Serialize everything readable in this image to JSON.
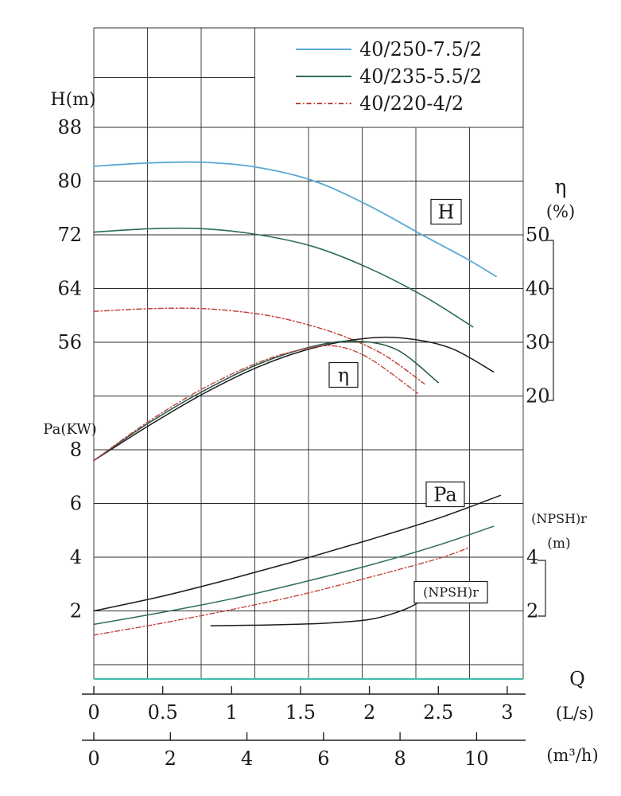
{
  "chart_data": {
    "type": "line",
    "legend": [
      {
        "label": "40/250-7.5/2",
        "color": "#5aa8d6",
        "dash": []
      },
      {
        "label": "40/235-5.5/2",
        "color": "#2c6e58",
        "dash": []
      },
      {
        "label": "40/220-4/2",
        "color": "#c2443b",
        "dash": [
          6,
          3,
          1.5,
          3
        ]
      }
    ],
    "axes": {
      "H": {
        "label": "H(m)",
        "ticks": [
          88,
          80,
          72,
          64,
          56
        ]
      },
      "Pa": {
        "label": "Pa(KW)",
        "ticks": [
          8,
          6,
          4,
          2
        ]
      },
      "eta": {
        "label_symbol": "η",
        "label_unit": "(%)",
        "ticks": [
          50,
          40,
          30,
          20
        ]
      },
      "npsh": {
        "label_symbol": "(NPSH)r",
        "label_unit": "(m)",
        "ticks": [
          4,
          2
        ]
      },
      "q_ls": {
        "axis_letter": "Q",
        "unit_label": "(L/s)",
        "ticks": [
          "0",
          "0.5",
          "1",
          "1.5",
          "2",
          "2.5",
          "3"
        ],
        "tick_values": [
          0,
          0.5,
          1,
          1.5,
          2,
          2.5,
          3
        ]
      },
      "q_m3h": {
        "unit_label": "(m³/h)",
        "ticks": [
          "0",
          "2",
          "4",
          "6",
          "8",
          "10"
        ],
        "tick_values": [
          0,
          2,
          4,
          6,
          8,
          10
        ]
      }
    },
    "curve_boxes": [
      {
        "text": "H"
      },
      {
        "text": "η"
      },
      {
        "text": "Pa"
      },
      {
        "text": "(NPSH)r"
      }
    ],
    "series": [
      {
        "name": "H 40/250-7.5/2",
        "axis": "H",
        "color": "#5aa8d6",
        "width": 1.8,
        "dash": [],
        "points": [
          [
            0,
            82.2
          ],
          [
            0.4,
            82.7
          ],
          [
            0.8,
            82.8
          ],
          [
            1.2,
            82.0
          ],
          [
            1.6,
            80.0
          ],
          [
            2.0,
            76.3
          ],
          [
            2.4,
            71.8
          ],
          [
            2.7,
            68.5
          ],
          [
            2.92,
            65.8
          ]
        ]
      },
      {
        "name": "H 40/235-5.5/2",
        "axis": "H",
        "color": "#2c6e58",
        "width": 1.6,
        "dash": [],
        "points": [
          [
            0,
            72.4
          ],
          [
            0.4,
            72.9
          ],
          [
            0.8,
            72.9
          ],
          [
            1.2,
            72.0
          ],
          [
            1.6,
            70.2
          ],
          [
            2.0,
            67.0
          ],
          [
            2.4,
            62.8
          ],
          [
            2.75,
            58.3
          ]
        ]
      },
      {
        "name": "H 40/220-4/2",
        "axis": "H",
        "color": "#c2443b",
        "width": 1.5,
        "dash": [
          6,
          3,
          1.5,
          3
        ],
        "points": [
          [
            0,
            60.6
          ],
          [
            0.4,
            61.0
          ],
          [
            0.8,
            61.0
          ],
          [
            1.2,
            60.2
          ],
          [
            1.5,
            58.9
          ],
          [
            1.8,
            57.0
          ],
          [
            2.1,
            54.2
          ],
          [
            2.4,
            49.8
          ]
        ]
      },
      {
        "name": "η 40/250-7.5/2",
        "axis": "eta",
        "color": "#1c1c1c",
        "width": 1.5,
        "dash": [],
        "points": [
          [
            0,
            8
          ],
          [
            0.4,
            14.5
          ],
          [
            0.8,
            20.5
          ],
          [
            1.2,
            25.5
          ],
          [
            1.6,
            29.0
          ],
          [
            2.0,
            30.8
          ],
          [
            2.3,
            30.6
          ],
          [
            2.6,
            28.8
          ],
          [
            2.9,
            24.5
          ]
        ]
      },
      {
        "name": "η 40/235-5.5/2",
        "axis": "eta",
        "color": "#24584a",
        "width": 1.5,
        "dash": [],
        "points": [
          [
            0,
            8
          ],
          [
            0.4,
            15.0
          ],
          [
            0.8,
            21.0
          ],
          [
            1.2,
            26.0
          ],
          [
            1.6,
            29.3
          ],
          [
            1.9,
            30.2
          ],
          [
            2.2,
            28.6
          ],
          [
            2.5,
            22.5
          ]
        ]
      },
      {
        "name": "η 40/220-4/2",
        "axis": "eta",
        "color": "#c2443b",
        "width": 1.4,
        "dash": [
          6,
          3,
          1.5,
          3
        ],
        "points": [
          [
            0,
            8
          ],
          [
            0.4,
            15.3
          ],
          [
            0.8,
            21.5
          ],
          [
            1.2,
            26.3
          ],
          [
            1.5,
            28.6
          ],
          [
            1.75,
            29.3
          ],
          [
            2.0,
            27.0
          ],
          [
            2.35,
            20.5
          ]
        ]
      },
      {
        "name": "Pa 40/250-7.5/2",
        "axis": "Pa",
        "color": "#1c1c1c",
        "width": 1.5,
        "dash": [],
        "points": [
          [
            0,
            2.0
          ],
          [
            0.5,
            2.55
          ],
          [
            1.0,
            3.2
          ],
          [
            1.5,
            3.9
          ],
          [
            2.0,
            4.65
          ],
          [
            2.5,
            5.45
          ],
          [
            2.95,
            6.3
          ]
        ]
      },
      {
        "name": "Pa 40/235-5.5/2",
        "axis": "Pa",
        "color": "#2c6e58",
        "width": 1.5,
        "dash": [],
        "points": [
          [
            0,
            1.5
          ],
          [
            0.5,
            1.95
          ],
          [
            1.0,
            2.45
          ],
          [
            1.5,
            3.05
          ],
          [
            2.0,
            3.7
          ],
          [
            2.5,
            4.45
          ],
          [
            2.9,
            5.15
          ]
        ]
      },
      {
        "name": "Pa 40/220-4/2",
        "axis": "Pa",
        "color": "#c2443b",
        "width": 1.4,
        "dash": [
          6,
          3,
          1.5,
          3
        ],
        "points": [
          [
            0,
            1.1
          ],
          [
            0.5,
            1.55
          ],
          [
            1.0,
            2.05
          ],
          [
            1.5,
            2.6
          ],
          [
            2.0,
            3.25
          ],
          [
            2.5,
            3.95
          ],
          [
            2.72,
            4.35
          ]
        ]
      },
      {
        "name": "(NPSH)r",
        "axis": "npsh",
        "color": "#1c1c1c",
        "width": 1.5,
        "dash": [],
        "points": [
          [
            0.85,
            1.45
          ],
          [
            1.3,
            1.48
          ],
          [
            1.7,
            1.55
          ],
          [
            2.0,
            1.68
          ],
          [
            2.2,
            1.95
          ],
          [
            2.35,
            2.3
          ],
          [
            2.45,
            2.8
          ]
        ]
      }
    ]
  }
}
